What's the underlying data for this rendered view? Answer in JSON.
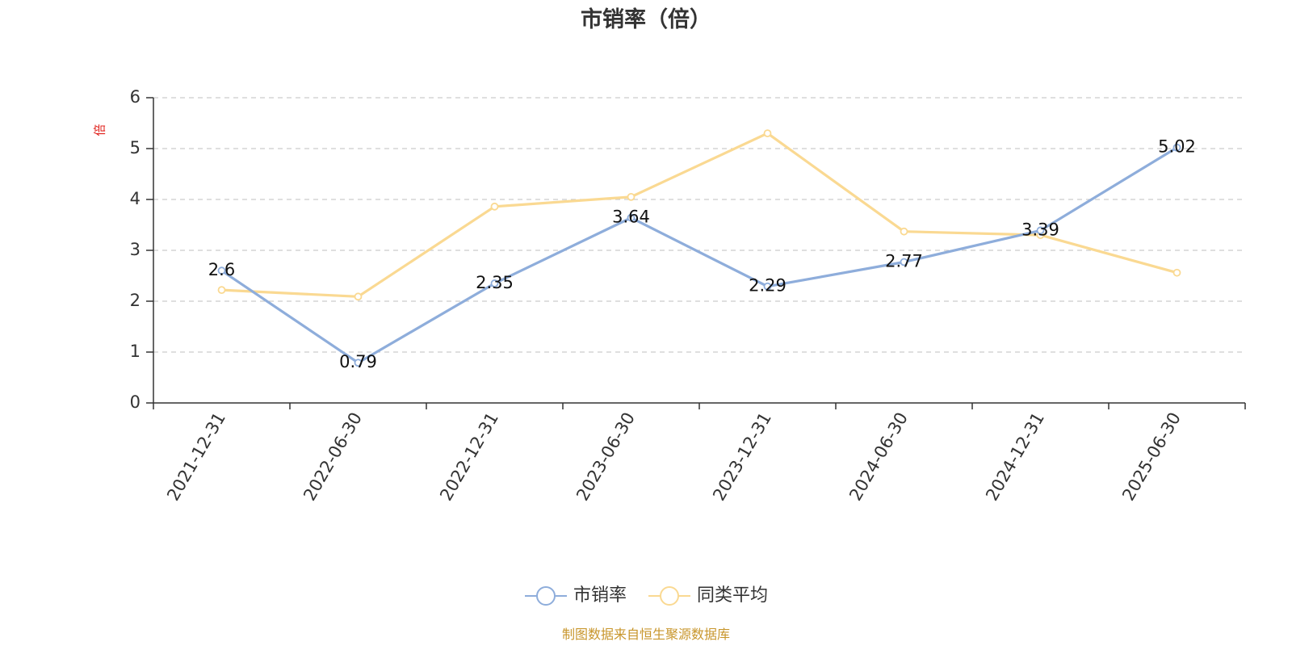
{
  "chart_data": {
    "type": "line",
    "title": "市销率（倍）",
    "ylabel": "倍",
    "xlabel": "",
    "categories": [
      "2021-12-31",
      "2022-06-30",
      "2022-12-31",
      "2023-06-30",
      "2023-12-31",
      "2024-06-30",
      "2024-12-31",
      "2025-06-30"
    ],
    "ylim": [
      0,
      6
    ],
    "yticks": [
      "0",
      "1",
      "2",
      "3",
      "4",
      "5",
      "6"
    ],
    "grid": "horizontal dashed",
    "legend_position": "bottom-center",
    "series": [
      {
        "name": "市销率",
        "values": [
          2.6,
          0.79,
          2.35,
          3.64,
          2.29,
          2.77,
          3.39,
          5.02
        ],
        "labels": [
          "2.6",
          "0.79",
          "2.35",
          "3.64",
          "2.29",
          "2.77",
          "3.39",
          "5.02"
        ],
        "color": "#8eaddb"
      },
      {
        "name": "同类平均",
        "values": [
          2.22,
          2.09,
          3.86,
          4.05,
          5.3,
          3.37,
          3.3,
          2.56
        ],
        "color": "#fad992"
      }
    ],
    "source": "制图数据来自恒生聚源数据库",
    "colors": {
      "axis": "#333333",
      "grid": "#cccccc",
      "unit": "#e0201b",
      "source": "#c8962c"
    }
  }
}
